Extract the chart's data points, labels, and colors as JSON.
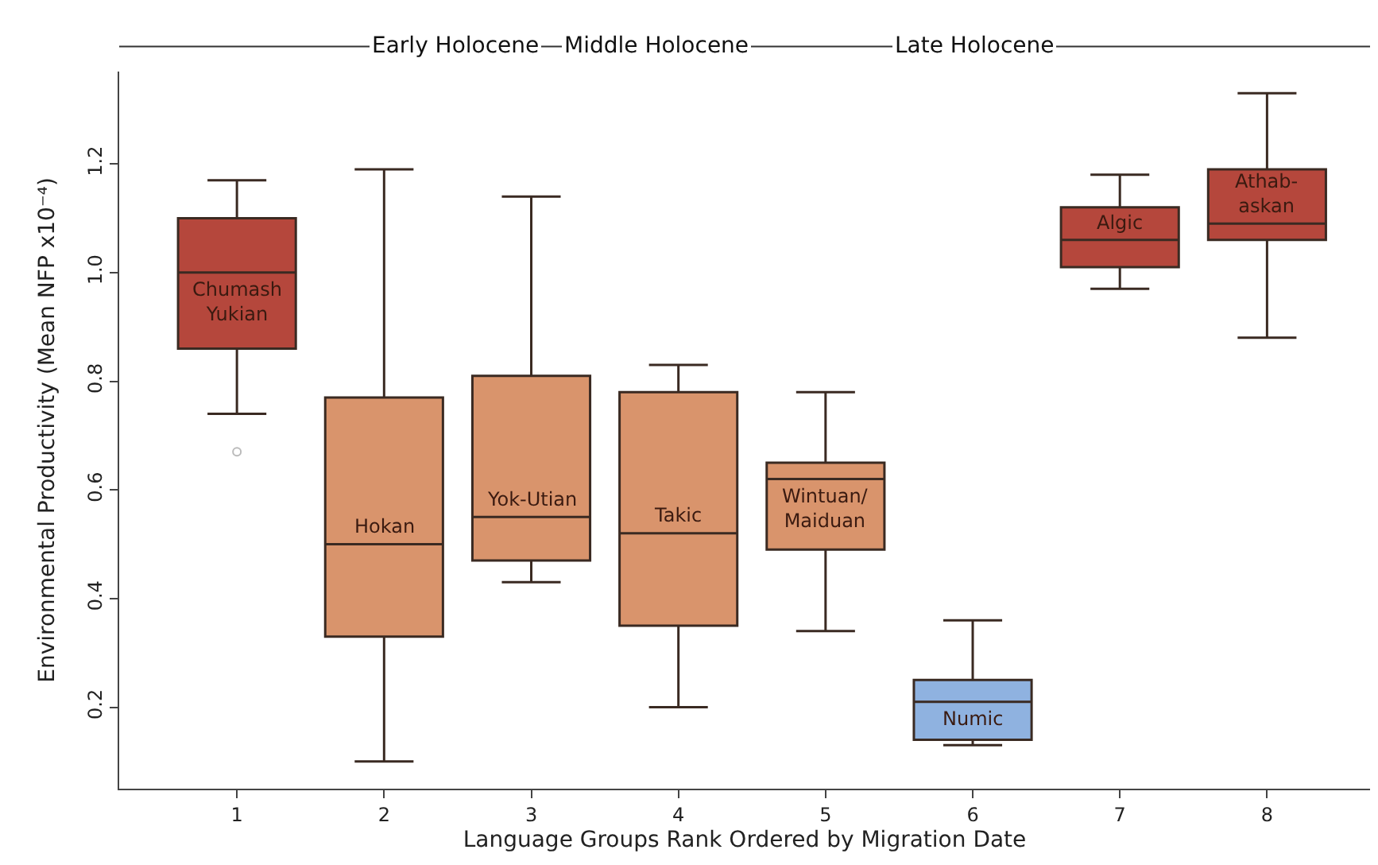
{
  "chart_data": {
    "type": "box",
    "xlabel": "Language Groups Rank Ordered by Migration Date",
    "ylabel": "Environmental Productivity (Mean NFP x10⁻⁴)",
    "categories": [
      "1",
      "2",
      "3",
      "4",
      "5",
      "6",
      "7",
      "8"
    ],
    "colors": [
      "#b5473c",
      "#d9946c",
      "#d9946c",
      "#d9946c",
      "#d9946c",
      "#8fb2e0",
      "#b5473c",
      "#b5473c"
    ],
    "boxes": [
      {
        "low": 0.74,
        "q1": 0.86,
        "median": 1.0,
        "q3": 1.1,
        "high": 1.17,
        "outliers": [
          0.67
        ]
      },
      {
        "low": 0.1,
        "q1": 0.33,
        "median": 0.5,
        "q3": 0.77,
        "high": 1.19
      },
      {
        "low": 0.43,
        "q1": 0.47,
        "median": 0.55,
        "q3": 0.81,
        "high": 1.14
      },
      {
        "low": 0.2,
        "q1": 0.35,
        "median": 0.52,
        "q3": 0.78,
        "high": 0.83
      },
      {
        "low": 0.34,
        "q1": 0.49,
        "median": 0.62,
        "q3": 0.65,
        "high": 0.78
      },
      {
        "low": 0.13,
        "q1": 0.14,
        "median": 0.21,
        "q3": 0.25,
        "high": 0.36
      },
      {
        "low": 0.97,
        "q1": 1.01,
        "median": 1.06,
        "q3": 1.12,
        "high": 1.18
      },
      {
        "low": 0.88,
        "q1": 1.06,
        "median": 1.09,
        "q3": 1.19,
        "high": 1.33
      }
    ],
    "ylim": [
      0.05,
      1.37
    ],
    "yticks": [
      0.2,
      0.4,
      0.6,
      0.8,
      {
        "value": 1.0,
        "label": "1.0"
      },
      1.2
    ],
    "annotations": [
      "Early Holocene",
      "Middle Holocene",
      "Late Holocene",
      "Chumash\nYukian",
      "Hokan",
      "Yok-Utian",
      "Takic",
      "Wintuan/\nMaiduan",
      "Numic",
      "Algic",
      "Athab-\naskan"
    ]
  }
}
